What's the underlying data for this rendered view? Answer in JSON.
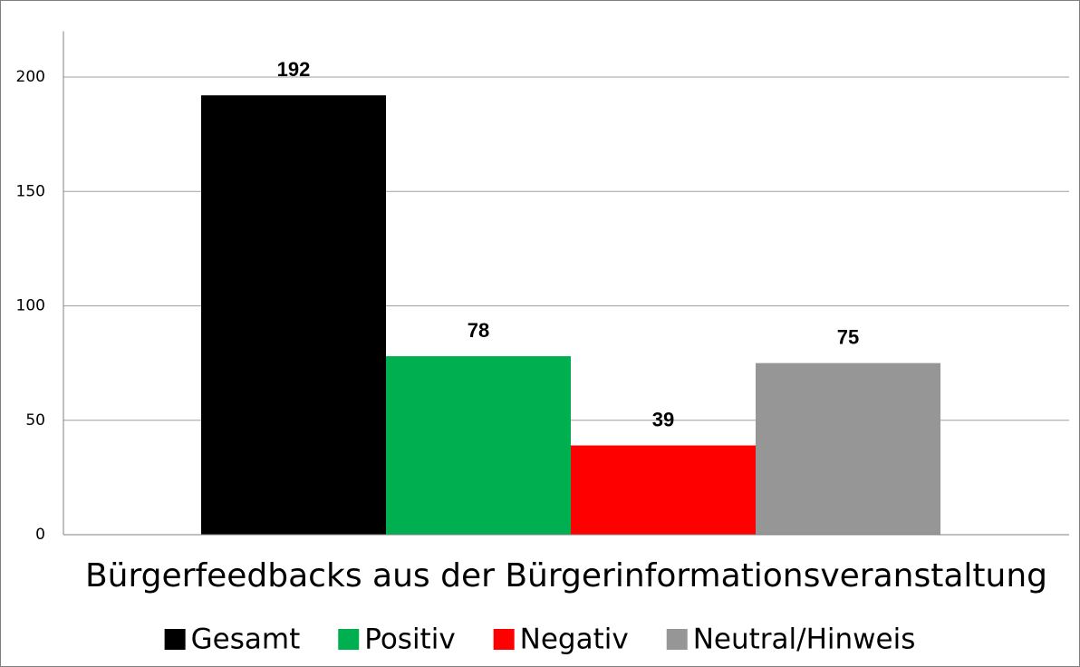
{
  "chart_data": {
    "type": "bar",
    "categories": [
      "Bürgerfeedbacks aus der Bürgerinformationsveranstaltung"
    ],
    "series": [
      {
        "name": "Gesamt",
        "color": "#000000",
        "values": [
          192
        ]
      },
      {
        "name": "Positiv",
        "color": "#00b050",
        "values": [
          78
        ]
      },
      {
        "name": "Negativ",
        "color": "#ff0000",
        "values": [
          39
        ]
      },
      {
        "name": "Neutral/Hinweis",
        "color": "#969696",
        "values": [
          75
        ]
      }
    ],
    "ylim": [
      0,
      220
    ],
    "yticks": [
      0,
      50,
      100,
      150,
      200
    ],
    "grid": true,
    "legend": "bottom"
  }
}
